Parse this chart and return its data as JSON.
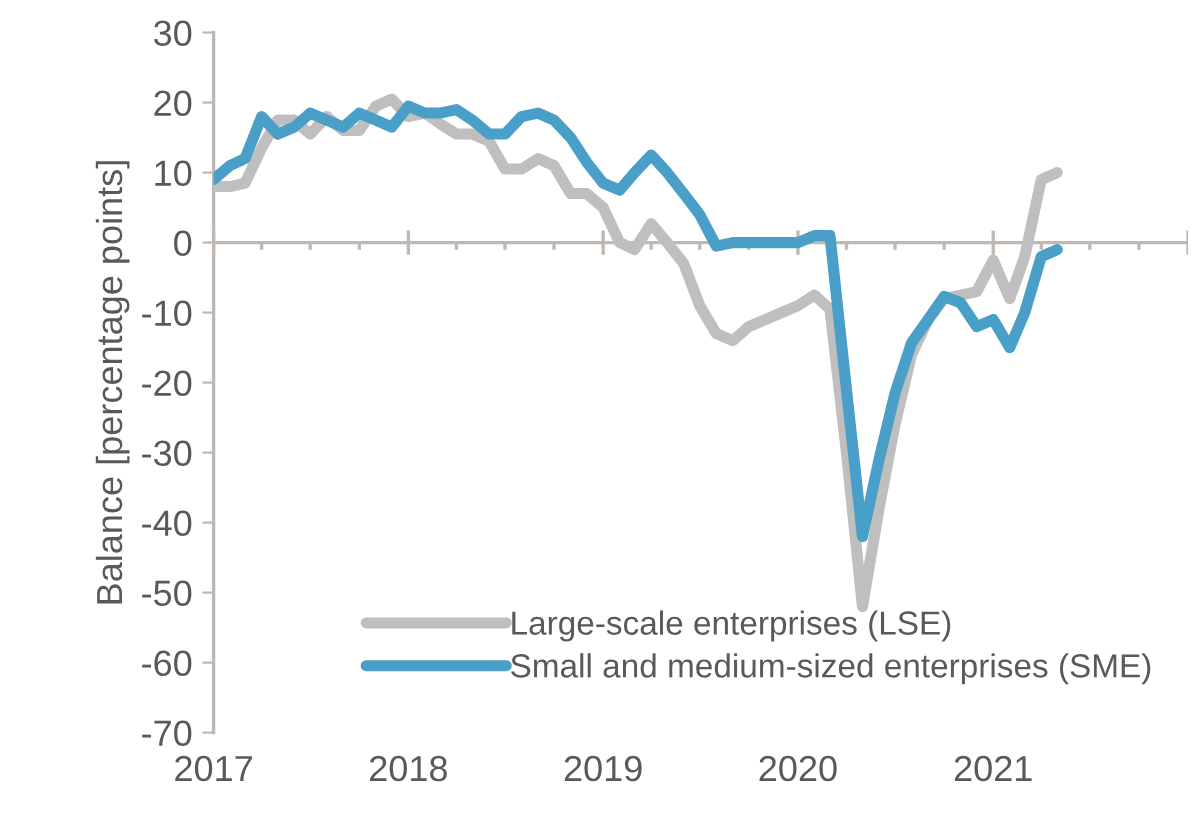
{
  "chart_data": {
    "type": "line",
    "ylabel": "Balance [percentage points]",
    "x": [
      "2017-01",
      "2017-02",
      "2017-03",
      "2017-04",
      "2017-05",
      "2017-06",
      "2017-07",
      "2017-08",
      "2017-09",
      "2017-10",
      "2017-11",
      "2017-12",
      "2018-01",
      "2018-02",
      "2018-03",
      "2018-04",
      "2018-05",
      "2018-06",
      "2018-07",
      "2018-08",
      "2018-09",
      "2018-10",
      "2018-11",
      "2018-12",
      "2019-01",
      "2019-02",
      "2019-03",
      "2019-04",
      "2019-05",
      "2019-06",
      "2019-07",
      "2019-08",
      "2019-09",
      "2019-10",
      "2019-11",
      "2019-12",
      "2020-01",
      "2020-02",
      "2020-03",
      "2020-04",
      "2020-05",
      "2020-06",
      "2020-07",
      "2020-08",
      "2020-09",
      "2020-10",
      "2020-11",
      "2020-12",
      "2021-01",
      "2021-02",
      "2021-03",
      "2021-04",
      "2021-05"
    ],
    "series": [
      {
        "name": "Large-scale enterprises (LSE)",
        "color": "#bfbfbf",
        "values": [
          8,
          8,
          8.5,
          13.5,
          17.5,
          17.5,
          15.5,
          18,
          16,
          16,
          19.5,
          20.5,
          18,
          18.5,
          17,
          15.5,
          15.5,
          14.5,
          10.5,
          10.5,
          12,
          11,
          7,
          7,
          5,
          0,
          -1,
          2.7,
          0,
          -3,
          -9,
          -13,
          -14,
          -12,
          -11,
          -10,
          -9,
          -7.5,
          -9.5,
          -30,
          -52,
          -38,
          -26,
          -16,
          -11,
          -8,
          -7.5,
          -7,
          -2.5,
          -8,
          -2,
          9,
          10
        ]
      },
      {
        "name": "Small and medium-sized enterprises (SME)",
        "color": "#4a9fc8",
        "values": [
          9,
          11,
          12,
          18,
          15.5,
          16.5,
          18.5,
          17.5,
          16.5,
          18.5,
          17.5,
          16.5,
          19.5,
          18.5,
          18.5,
          19,
          17.5,
          15.5,
          15.5,
          18,
          18.5,
          17.5,
          15,
          11.5,
          8.5,
          7.5,
          10,
          12.5,
          10,
          7,
          4,
          -0.5,
          0,
          0,
          0,
          0,
          0,
          1,
          1,
          -21,
          -42,
          -31,
          -21.5,
          -14.3,
          -11,
          -7.7,
          -8.6,
          -12,
          -11,
          -15,
          -10,
          -2,
          -1
        ]
      }
    ],
    "xlim": [
      "2017-01",
      "2022-01"
    ],
    "xticks": [
      {
        "value": "2017-01",
        "label": "2017"
      },
      {
        "value": "2018-01",
        "label": "2018"
      },
      {
        "value": "2019-01",
        "label": "2019"
      },
      {
        "value": "2020-01",
        "label": "2020"
      },
      {
        "value": "2021-01",
        "label": "2021"
      },
      {
        "value": "2022-01",
        "label": null
      }
    ],
    "ylim": [
      -70,
      30
    ],
    "yticks": [
      -70,
      -60,
      -50,
      -40,
      -30,
      -20,
      -10,
      0,
      10,
      20,
      30
    ],
    "ref_lines": [
      {
        "axis": "y",
        "value": 0,
        "color": "#bfb8b3"
      }
    ],
    "legend": "bottom",
    "grid": false,
    "marker": "none",
    "line_style": "solid"
  }
}
